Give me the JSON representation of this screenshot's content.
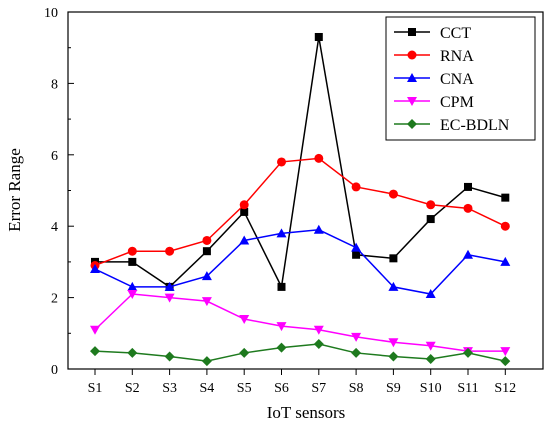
{
  "chart_data": {
    "type": "line",
    "title": "",
    "xlabel": "IoT sensors",
    "ylabel": "Error Range",
    "categories": [
      "S1",
      "S2",
      "S3",
      "S4",
      "S5",
      "S6",
      "S7",
      "S8",
      "S9",
      "S10",
      "S11",
      "S12"
    ],
    "ylim": [
      0,
      10
    ],
    "yticks": [
      0,
      2,
      4,
      6,
      8,
      10
    ],
    "grid": false,
    "legend_position": "top-right",
    "series": [
      {
        "name": "CCT",
        "color": "#000000",
        "marker": "square",
        "values": [
          3.0,
          3.0,
          2.3,
          3.3,
          4.4,
          2.3,
          9.3,
          3.2,
          3.1,
          4.2,
          5.1,
          4.8
        ]
      },
      {
        "name": "RNA",
        "color": "#ff0000",
        "marker": "circle",
        "values": [
          2.9,
          3.3,
          3.3,
          3.6,
          4.6,
          5.8,
          5.9,
          5.1,
          4.9,
          4.6,
          4.5,
          4.0
        ]
      },
      {
        "name": "CNA",
        "color": "#0000ff",
        "marker": "triangle-up",
        "values": [
          2.8,
          2.3,
          2.3,
          2.6,
          3.6,
          3.8,
          3.9,
          3.4,
          2.3,
          2.1,
          3.2,
          3.0
        ]
      },
      {
        "name": "CPM",
        "color": "#ff00ff",
        "marker": "triangle-down",
        "values": [
          1.1,
          2.1,
          2.0,
          1.9,
          1.4,
          1.2,
          1.1,
          0.9,
          0.75,
          0.65,
          0.5,
          0.5
        ]
      },
      {
        "name": "EC-BDLN",
        "color": "#1e7a1e",
        "marker": "diamond",
        "values": [
          0.5,
          0.45,
          0.35,
          0.22,
          0.45,
          0.6,
          0.7,
          0.45,
          0.35,
          0.28,
          0.45,
          0.22
        ]
      }
    ]
  }
}
